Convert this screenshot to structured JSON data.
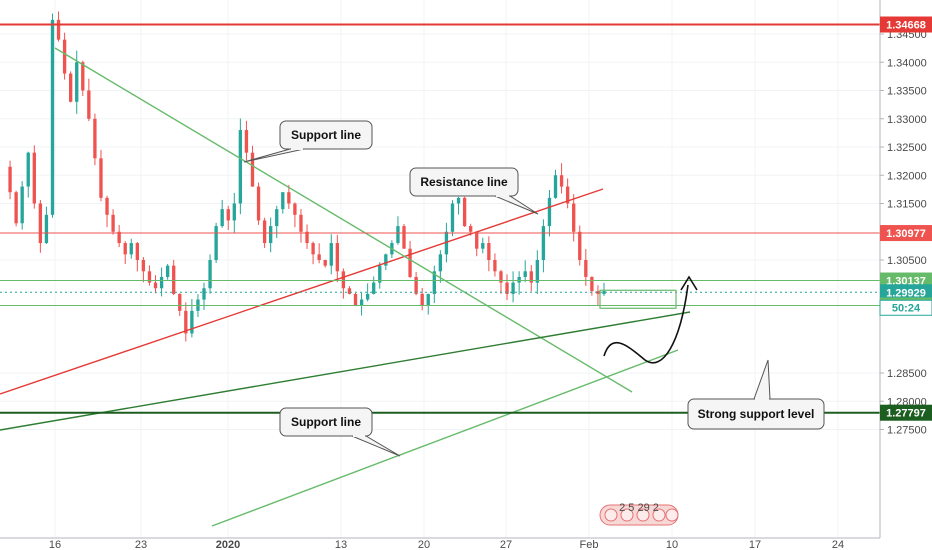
{
  "chart_data": {
    "type": "candlestick",
    "y_axis": {
      "range": [
        1.273,
        1.3488
      ],
      "ticks": [
        "1.34500",
        "1.34000",
        "1.33500",
        "1.33000",
        "1.32500",
        "1.32000",
        "1.31500",
        "1.30500",
        "1.28500",
        "1.28000",
        "1.27500"
      ],
      "side": "right"
    },
    "x_axis": {
      "ticks": [
        "16",
        "23",
        "2020",
        "13",
        "20",
        "27",
        "Feb",
        "10",
        "17",
        "24"
      ]
    },
    "horizontal_levels": [
      {
        "value": 1.34668,
        "label": "1.34668",
        "color": "#e53935"
      },
      {
        "value": 1.30977,
        "label": "1.30977",
        "color": "#ef5350"
      },
      {
        "value": 1.30137,
        "label": "1.30137",
        "color": "#66bb6a"
      },
      {
        "value": 1.29929,
        "label": "1.29929",
        "color": "#26a69a"
      },
      {
        "value": 1.29695,
        "label": "1.29695",
        "color": "#66bb6a"
      },
      {
        "value": 1.27797,
        "label": "1.27797",
        "color": "#1b5e20"
      }
    ],
    "countdown_label": "50:24",
    "annotations": [
      {
        "text": "Support line"
      },
      {
        "text": "Resistance line"
      },
      {
        "text": "Support line"
      },
      {
        "text": "Strong support level"
      }
    ],
    "session_markers": "2 5 29 2",
    "colors": {
      "up": "#26a69a",
      "down": "#ef5350",
      "resistance": "#e53935",
      "support": "#66bb6a",
      "support_dark": "#2e7d32"
    },
    "price_path": [
      1.3215,
      1.317,
      1.3115,
      1.318,
      1.324,
      1.315,
      1.308,
      1.313,
      1.3475,
      1.344,
      1.338,
      1.333,
      1.34,
      1.335,
      1.33,
      1.323,
      1.316,
      1.313,
      1.31,
      1.308,
      1.306,
      1.308,
      1.305,
      1.303,
      1.301,
      1.3,
      1.302,
      1.304,
      1.299,
      1.296,
      1.292,
      1.296,
      1.298,
      1.3,
      1.305,
      1.311,
      1.314,
      1.312,
      1.315,
      1.328,
      1.324,
      1.318,
      1.312,
      1.308,
      1.311,
      1.314,
      1.317,
      1.315,
      1.313,
      1.31,
      1.308,
      1.306,
      1.305,
      1.304,
      1.308,
      1.303,
      1.3,
      1.299,
      1.297,
      1.298,
      1.299,
      1.301,
      1.304,
      1.306,
      1.308,
      1.311,
      1.307,
      1.302,
      1.299,
      1.297,
      1.299,
      1.303,
      1.306,
      1.31,
      1.315,
      1.316,
      1.311,
      1.31,
      1.307,
      1.308,
      1.305,
      1.303,
      1.301,
      1.299,
      1.301,
      1.302,
      1.303,
      1.301,
      1.305,
      1.311,
      1.316,
      1.32,
      1.318,
      1.315,
      1.31,
      1.305,
      1.302,
      1.2995,
      1.299,
      1.2995
    ]
  }
}
